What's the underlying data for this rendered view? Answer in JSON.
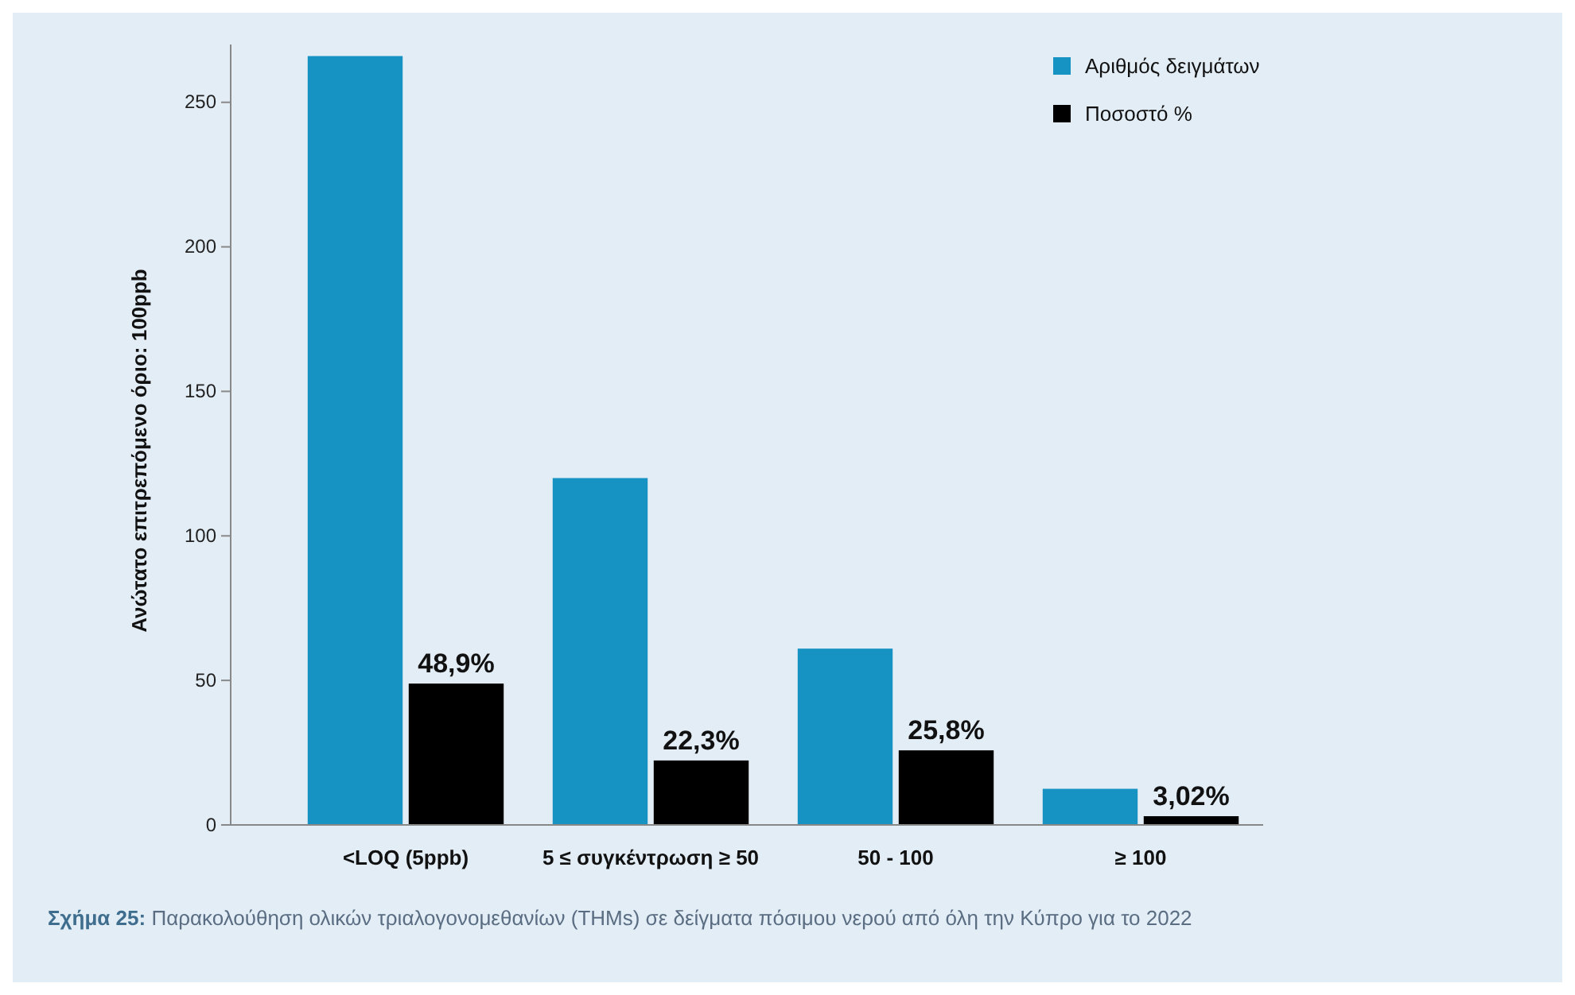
{
  "chart_data": {
    "type": "bar",
    "ylabel": "Ανώτατο επιτρεπόμενο όριο: 100ppb",
    "categories": [
      "<LOQ (5ppb)",
      "5 ≤ συγκέντρωση ≥ 50",
      "50 - 100",
      "≥ 100"
    ],
    "series": [
      {
        "name": "Αριθμός δειγμάτων",
        "color": "#1793c3",
        "values": [
          266,
          120,
          61,
          12.5
        ]
      },
      {
        "name": "Ποσοστό %",
        "color": "#000000",
        "values": [
          48.9,
          22.3,
          25.8,
          3.02
        ],
        "value_labels": [
          "48,9%",
          "22,3%",
          "25,8%",
          "3,02%"
        ]
      }
    ],
    "ylim": [
      0,
      270
    ],
    "yticks": [
      0,
      50,
      100,
      150,
      200,
      250
    ],
    "grid": false,
    "legend": "top right",
    "annotations": [
      "Σχήμα 25: Παρακολούθηση ολικών τριαλογονομεθανίων (THMs) σε δείγματα πόσιμου νερού από όλη την Κύπρο για το 2022"
    ]
  }
}
